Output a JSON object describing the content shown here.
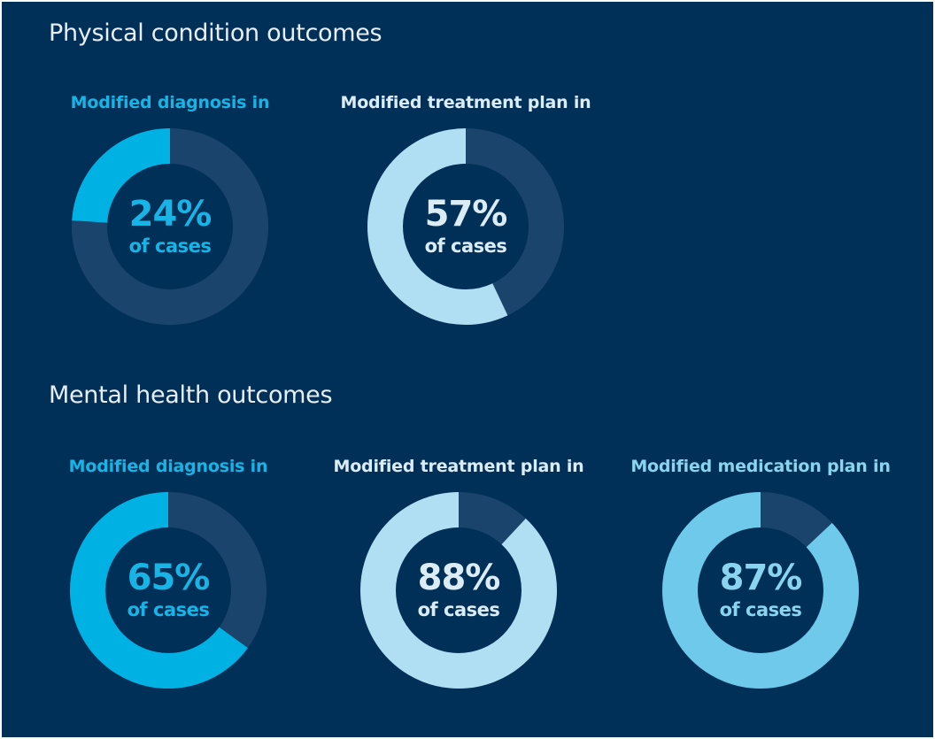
{
  "sections": [
    {
      "title": "Physical condition outcomes",
      "metrics": [
        {
          "label": "Modified diagnosis in",
          "value": 24,
          "value_text": "24%",
          "sub_text": "of cases",
          "color": "#00b2e3",
          "label_color": "#18b4e6"
        },
        {
          "label": "Modified treatment plan in",
          "value": 57,
          "value_text": "57%",
          "sub_text": "of cases",
          "color": "#b0def2",
          "label_color": "#dcecf6"
        }
      ]
    },
    {
      "title": "Mental health outcomes",
      "metrics": [
        {
          "label": "Modified diagnosis in",
          "value": 65,
          "value_text": "65%",
          "sub_text": "of cases",
          "color": "#00b2e3",
          "label_color": "#18b4e6"
        },
        {
          "label": "Modified treatment plan in",
          "value": 88,
          "value_text": "88%",
          "sub_text": "of cases",
          "color": "#b0def2",
          "label_color": "#dcecf6"
        },
        {
          "label": "Modified medication plan in",
          "value": 87,
          "value_text": "87%",
          "sub_text": "of cases",
          "color": "#6ec9ea",
          "label_color": "#8ad4ef"
        }
      ]
    }
  ],
  "chart_data": [
    {
      "type": "pie",
      "title": "Physical condition outcomes",
      "categories": [
        "Modified diagnosis in",
        "Modified treatment plan in"
      ],
      "values": [
        24,
        57
      ]
    },
    {
      "type": "pie",
      "title": "Mental health outcomes",
      "categories": [
        "Modified diagnosis in",
        "Modified treatment plan in",
        "Modified medication plan in"
      ],
      "values": [
        65,
        88,
        87
      ]
    }
  ],
  "colors": {
    "background": "#003057",
    "track": "#1a446b",
    "title": "#e8eef4"
  }
}
